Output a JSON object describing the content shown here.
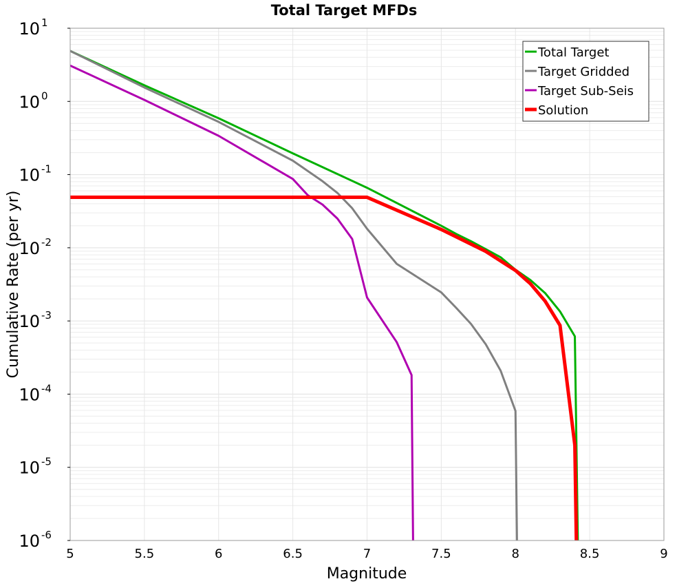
{
  "chart_data": {
    "type": "line",
    "title": "Total Target MFDs",
    "xlabel": "Magnitude",
    "ylabel": "Cumulative Rate (per yr)",
    "xlim": [
      5,
      9
    ],
    "ylim_log10": [
      -6,
      1
    ],
    "yscale": "log",
    "grid": true,
    "legend_position": "top-right",
    "xticks": [
      "5",
      "5.5",
      "6",
      "6.5",
      "7",
      "7.5",
      "8",
      "8.5",
      "9"
    ],
    "yticks": [
      {
        "base": "10",
        "exp": "1"
      },
      {
        "base": "10",
        "exp": "0"
      },
      {
        "base": "10",
        "exp": "-1"
      },
      {
        "base": "10",
        "exp": "-2"
      },
      {
        "base": "10",
        "exp": "-3"
      },
      {
        "base": "10",
        "exp": "-4"
      },
      {
        "base": "10",
        "exp": "-5"
      },
      {
        "base": "10",
        "exp": "-6"
      }
    ],
    "series": [
      {
        "name": "Total Target",
        "color": "#00b000",
        "width": 3,
        "x": [
          5,
          5.5,
          6,
          6.5,
          7,
          7.5,
          7.6,
          7.7,
          7.8,
          7.9,
          8.0,
          8.1,
          8.2,
          8.3,
          8.4,
          8.42
        ],
        "log10_y": [
          0.69,
          0.22,
          -0.23,
          -0.71,
          -1.18,
          -1.7,
          -1.81,
          -1.91,
          -2.02,
          -2.13,
          -2.3,
          -2.44,
          -2.62,
          -2.87,
          -3.21,
          -6
        ]
      },
      {
        "name": "Target Gridded",
        "color": "#808080",
        "width": 3,
        "x": [
          5,
          5.5,
          6,
          6.5,
          6.7,
          6.8,
          6.9,
          7.0,
          7.2,
          7.5,
          7.6,
          7.7,
          7.8,
          7.9,
          8.0,
          8.01
        ],
        "log10_y": [
          0.69,
          0.19,
          -0.28,
          -0.81,
          -1.09,
          -1.25,
          -1.46,
          -1.74,
          -2.22,
          -2.61,
          -2.82,
          -3.04,
          -3.32,
          -3.68,
          -4.23,
          -6
        ]
      },
      {
        "name": "Target Sub-Seis",
        "color": "#b000b0",
        "width": 3,
        "x": [
          5,
          5.5,
          6,
          6.5,
          6.6,
          6.7,
          6.8,
          6.9,
          7.0,
          7.2,
          7.3,
          7.31
        ],
        "log10_y": [
          0.49,
          0.02,
          -0.47,
          -1.06,
          -1.28,
          -1.41,
          -1.6,
          -1.88,
          -2.68,
          -3.29,
          -3.74,
          -6
        ]
      },
      {
        "name": "Solution",
        "color": "#ff0000",
        "width": 5,
        "x": [
          5,
          7.0,
          7.5,
          7.8,
          8.0,
          8.1,
          8.2,
          8.3,
          8.4,
          8.41
        ],
        "log10_y": [
          -1.31,
          -1.31,
          -1.75,
          -2.05,
          -2.31,
          -2.49,
          -2.73,
          -3.06,
          -4.7,
          -6
        ]
      }
    ]
  }
}
